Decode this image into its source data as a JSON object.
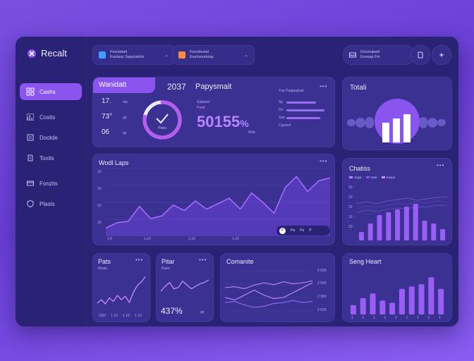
{
  "app": {
    "name": "Recalt"
  },
  "sidebar": {
    "items": [
      {
        "label": "Cashs",
        "icon": "grid-icon",
        "active": true
      },
      {
        "label": "Cosits",
        "icon": "chart-icon"
      },
      {
        "label": "Dootde",
        "icon": "box-icon"
      },
      {
        "label": "Toxits",
        "icon": "doc-icon"
      },
      {
        "label": "Fonzits",
        "icon": "card-icon"
      },
      {
        "label": "Plasts",
        "icon": "shield-icon"
      }
    ]
  },
  "topbar": {
    "select1": {
      "line1": "Fesotdeid",
      "line2": "Easlaoy Sapy/atshs"
    },
    "select2": {
      "line1": "Fesotbosid",
      "line2": "Easloxoetsiay"
    },
    "account": {
      "line1": "Desmiipeid",
      "line2": "Eonsap Fis"
    },
    "colors": {
      "accent": "#8a55ee",
      "bg": "#2a2375",
      "card": "#3a3193"
    }
  },
  "kpi": {
    "badge": "Wanidatt",
    "year": "2037",
    "rows": [
      {
        "value": "17.",
        "unit": "mp"
      },
      {
        "value": "73°",
        "unit": "pp"
      },
      {
        "value": "06",
        "unit": "pp"
      }
    ],
    "donut_label": "Paos",
    "donut_fraction": 0.78,
    "paymeni_title": "Papysmait",
    "paymeni_caption1": "Sabsest",
    "paymeni_caption2": "Pesd",
    "paymeni_value": "50155",
    "paymeni_suffix": "%",
    "paymeni_note": "Wds"
  },
  "progress": {
    "header": "Ysp Paapugtoat",
    "rows": [
      {
        "label": "Sp",
        "fraction": 0.6
      },
      {
        "label": "Ds",
        "fraction": 0.77
      },
      {
        "label": "Ssp",
        "fraction": 0.68
      },
      {
        "label": "Cayeod",
        "fraction": 0
      }
    ]
  },
  "total": {
    "title": "Totali"
  },
  "worldmaps": {
    "title": "Wodl Laps",
    "ylabels": [
      "10",
      "10",
      "10",
      "10"
    ],
    "xlabels": [
      "1,8",
      "1,10",
      "1,10",
      "1,10"
    ],
    "legend": [
      "P",
      "Pa",
      "Pa",
      "P"
    ]
  },
  "charts": {
    "title": "Chatiss",
    "legend": [
      "Sopp",
      "Sate",
      "Ssspe"
    ],
    "ylabels": [
      "10",
      "10",
      "10",
      "10",
      "10"
    ]
  },
  "pats": {
    "title": "Pats",
    "sub": "Roste",
    "xlabels": [
      "10/0",
      "1 10",
      "1 10",
      "1 10"
    ]
  },
  "pitar": {
    "title": "Pitar",
    "sub": "Paee",
    "value": "437%",
    "unit": "pp"
  },
  "comanite": {
    "title": "Comanite",
    "ylabels": [
      "2 500",
      "2 500",
      "2 300",
      "2 500"
    ]
  },
  "sessheart": {
    "title": "Seng Heart",
    "xlabels": [
      "1",
      "1",
      "1",
      "1",
      "1",
      "1",
      "1",
      "1",
      "1"
    ]
  },
  "chart_data": [
    {
      "type": "line",
      "title": "Wodl Laps",
      "x": [
        0,
        1,
        2,
        3,
        4,
        5,
        6,
        7,
        8,
        9,
        10,
        11,
        12,
        13,
        14,
        15,
        16,
        17,
        18,
        19,
        20
      ],
      "y": [
        12,
        20,
        22,
        44,
        26,
        30,
        46,
        38,
        52,
        40,
        48,
        56,
        40,
        64,
        50,
        34,
        72,
        88,
        66,
        82,
        86
      ],
      "ylim": [
        0,
        100
      ]
    },
    {
      "type": "bar",
      "title": "Chatiss",
      "categories": [
        "1",
        "2",
        "3",
        "4",
        "5",
        "6",
        "7",
        "8",
        "9",
        "10"
      ],
      "values": [
        15,
        30,
        45,
        50,
        55,
        60,
        65,
        35,
        30,
        20
      ],
      "ylim": [
        0,
        100
      ]
    },
    {
      "type": "line",
      "title": "Pats",
      "x": [
        0,
        1,
        2,
        3,
        4,
        5,
        6,
        7,
        8,
        9,
        10,
        11,
        12
      ],
      "y": [
        20,
        30,
        18,
        35,
        25,
        42,
        30,
        40,
        22,
        50,
        70,
        80,
        95
      ],
      "ylim": [
        0,
        100
      ]
    },
    {
      "type": "line",
      "title": "Pitar",
      "x": [
        0,
        1,
        2,
        3,
        4,
        5,
        6,
        7,
        8,
        9,
        10,
        11
      ],
      "y": [
        30,
        50,
        65,
        40,
        45,
        70,
        55,
        40,
        50,
        60,
        65,
        75
      ],
      "ylim": [
        0,
        100
      ]
    },
    {
      "type": "line",
      "title": "Comanite",
      "series": [
        {
          "values": [
            60,
            62,
            58,
            65,
            70,
            66,
            72,
            68,
            70,
            74
          ]
        },
        {
          "values": [
            40,
            35,
            45,
            55,
            45,
            38,
            40,
            50,
            60,
            70
          ]
        },
        {
          "values": [
            30,
            32,
            25,
            20,
            22,
            28,
            30,
            34,
            30,
            32
          ]
        }
      ],
      "ylim": [
        0,
        100
      ]
    },
    {
      "type": "bar",
      "title": "Seng Heart",
      "categories": [
        "1",
        "2",
        "3",
        "4",
        "5",
        "6",
        "7",
        "8",
        "9",
        "10"
      ],
      "values": [
        20,
        35,
        45,
        30,
        25,
        55,
        60,
        65,
        80,
        55
      ],
      "ylim": [
        0,
        100
      ]
    }
  ]
}
